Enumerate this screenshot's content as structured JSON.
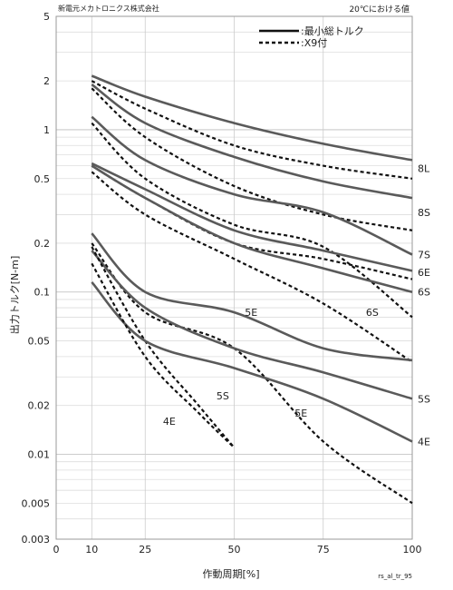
{
  "header": {
    "company": "新電元メカトロニクス株式会社",
    "condition": "20℃における値"
  },
  "footer": {
    "figure_code": "rs_al_tr_95"
  },
  "chart_data": {
    "type": "line",
    "title": "",
    "xlabel": "作動周期[%]",
    "ylabel": "出力トルク[N-m]",
    "xlim": [
      0,
      100
    ],
    "ylim": [
      0.003,
      5
    ],
    "yscale": "log",
    "x_ticks": [
      0,
      10,
      25,
      50,
      75,
      100
    ],
    "y_ticks": [
      0.003,
      0.005,
      0.01,
      0.02,
      0.05,
      0.1,
      0.2,
      0.5,
      1,
      2,
      5
    ],
    "grid": true,
    "legend": {
      "position": "top-right",
      "entries": [
        {
          "style": "solid",
          "label": ":最小総トルク"
        },
        {
          "style": "dashed",
          "label": ":X9付"
        }
      ]
    },
    "series": [
      {
        "name": "8L",
        "style": "solid",
        "points": [
          [
            10,
            2.15
          ],
          [
            25,
            1.6
          ],
          [
            50,
            1.1
          ],
          [
            75,
            0.82
          ],
          [
            100,
            0.65
          ]
        ]
      },
      {
        "name": "8L",
        "style": "dashed",
        "points": [
          [
            10,
            2.0
          ],
          [
            25,
            1.35
          ],
          [
            50,
            0.8
          ],
          [
            75,
            0.6
          ],
          [
            100,
            0.5
          ]
        ]
      },
      {
        "name": "8S",
        "style": "solid",
        "points": [
          [
            10,
            1.9
          ],
          [
            25,
            1.1
          ],
          [
            50,
            0.68
          ],
          [
            75,
            0.48
          ],
          [
            100,
            0.38
          ]
        ]
      },
      {
        "name": "8S",
        "style": "dashed",
        "points": [
          [
            10,
            1.8
          ],
          [
            25,
            0.9
          ],
          [
            50,
            0.45
          ],
          [
            75,
            0.3
          ],
          [
            100,
            0.24
          ]
        ]
      },
      {
        "name": "7S",
        "style": "solid",
        "points": [
          [
            10,
            1.2
          ],
          [
            25,
            0.65
          ],
          [
            50,
            0.4
          ],
          [
            75,
            0.31
          ],
          [
            100,
            0.17
          ]
        ]
      },
      {
        "name": "7S",
        "style": "dashed",
        "points": [
          [
            10,
            1.1
          ],
          [
            25,
            0.5
          ],
          [
            50,
            0.26
          ],
          [
            75,
            0.19
          ],
          [
            100,
            0.07
          ]
        ]
      },
      {
        "name": "6E",
        "style": "solid",
        "points": [
          [
            10,
            0.62
          ],
          [
            25,
            0.43
          ],
          [
            50,
            0.24
          ],
          [
            75,
            0.18
          ],
          [
            100,
            0.135
          ]
        ]
      },
      {
        "name": "6E",
        "style": "dashed",
        "points": [
          [
            10,
            0.6
          ],
          [
            25,
            0.38
          ],
          [
            50,
            0.2
          ],
          [
            75,
            0.16
          ],
          [
            100,
            0.12
          ]
        ]
      },
      {
        "name": "6S",
        "style": "solid",
        "points": [
          [
            10,
            0.6
          ],
          [
            25,
            0.38
          ],
          [
            50,
            0.2
          ],
          [
            75,
            0.14
          ],
          [
            100,
            0.1
          ]
        ]
      },
      {
        "name": "6S",
        "style": "dashed",
        "points": [
          [
            10,
            0.55
          ],
          [
            25,
            0.3
          ],
          [
            50,
            0.16
          ],
          [
            75,
            0.085
          ],
          [
            100,
            0.037
          ]
        ]
      },
      {
        "name": "5E",
        "style": "solid",
        "points": [
          [
            10,
            0.23
          ],
          [
            25,
            0.1
          ],
          [
            50,
            0.075
          ],
          [
            75,
            0.045
          ],
          [
            100,
            0.038
          ]
        ]
      },
      {
        "name": "5E",
        "style": "dashed",
        "points": [
          [
            10,
            0.2
          ],
          [
            25,
            0.075
          ],
          [
            50,
            0.045
          ],
          [
            75,
            0.012
          ],
          [
            100,
            0.005
          ]
        ]
      },
      {
        "name": "5S",
        "style": "solid",
        "points": [
          [
            10,
            0.18
          ],
          [
            25,
            0.08
          ],
          [
            50,
            0.045
          ],
          [
            75,
            0.032
          ],
          [
            100,
            0.022
          ]
        ]
      },
      {
        "name": "5S",
        "style": "dashed",
        "points": [
          [
            10,
            0.19
          ],
          [
            25,
            0.05
          ],
          [
            40,
            0.02
          ],
          [
            50,
            0.011
          ]
        ]
      },
      {
        "name": "4E",
        "style": "solid",
        "points": [
          [
            10,
            0.115
          ],
          [
            25,
            0.05
          ],
          [
            50,
            0.034
          ],
          [
            75,
            0.022
          ],
          [
            100,
            0.012
          ]
        ]
      },
      {
        "name": "4E",
        "style": "dashed",
        "points": [
          [
            10,
            0.15
          ],
          [
            25,
            0.04
          ],
          [
            40,
            0.018
          ],
          [
            50,
            0.011
          ]
        ]
      }
    ],
    "annotations": [
      {
        "text": "8L",
        "x": 100,
        "y": 0.58,
        "side": "right"
      },
      {
        "text": "8S",
        "x": 100,
        "y": 0.31,
        "side": "right"
      },
      {
        "text": "7S",
        "x": 100,
        "y": 0.17,
        "side": "right"
      },
      {
        "text": "6E",
        "x": 100,
        "y": 0.132,
        "side": "right"
      },
      {
        "text": "6S",
        "x": 100,
        "y": 0.1,
        "side": "right"
      },
      {
        "text": "5S",
        "x": 100,
        "y": 0.022,
        "side": "right"
      },
      {
        "text": "4E",
        "x": 100,
        "y": 0.012,
        "side": "right"
      },
      {
        "text": "5E",
        "x": 53,
        "y": 0.075,
        "side": "inside"
      },
      {
        "text": "6S",
        "x": 87,
        "y": 0.075,
        "side": "inside"
      },
      {
        "text": "5S",
        "x": 45,
        "y": 0.023,
        "side": "inside"
      },
      {
        "text": "4E",
        "x": 30,
        "y": 0.016,
        "side": "inside"
      },
      {
        "text": "5E",
        "x": 67,
        "y": 0.018,
        "side": "inside"
      }
    ]
  }
}
